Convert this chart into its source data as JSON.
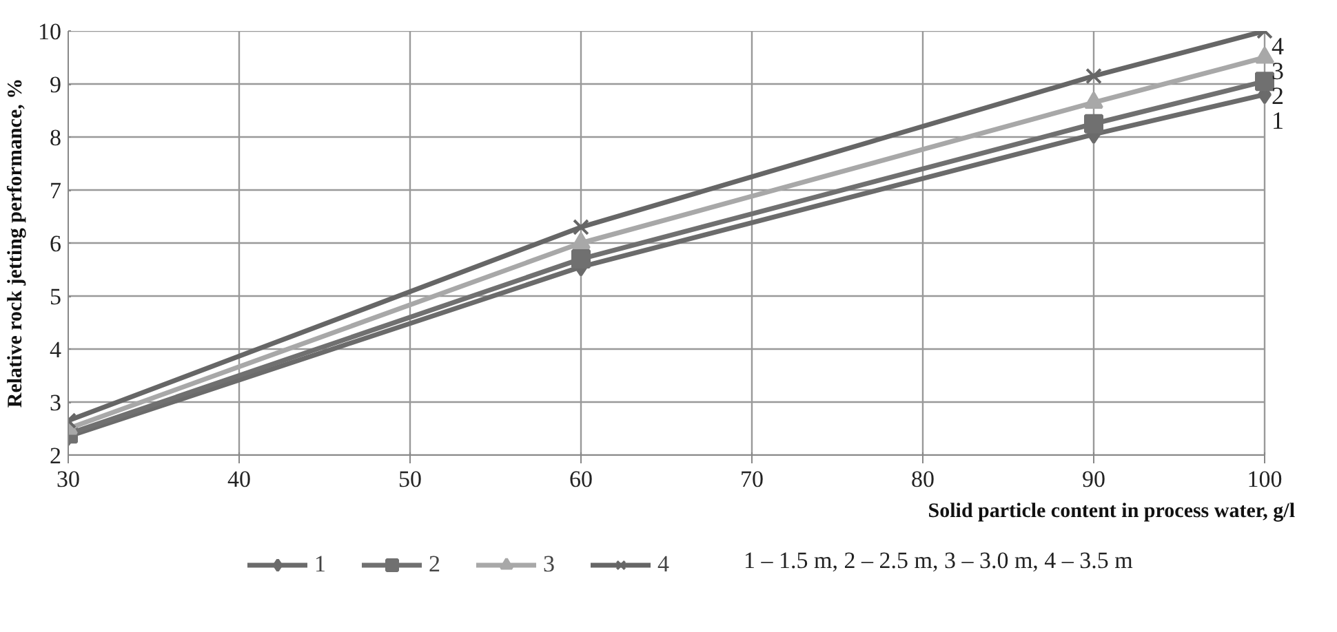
{
  "chart_data": {
    "type": "line",
    "xlabel": "Solid particle content in process water, g/l",
    "ylabel": "Relative rock jetting performance, %",
    "x": [
      30,
      60,
      90,
      100
    ],
    "series": [
      {
        "name": "1",
        "color": "#6b6b6b",
        "marker": "diamond",
        "values": [
          2.35,
          5.55,
          8.05,
          8.8
        ]
      },
      {
        "name": "2",
        "color": "#707070",
        "marker": "square",
        "values": [
          2.4,
          5.7,
          8.25,
          9.05
        ]
      },
      {
        "name": "3",
        "color": "#a8a8a8",
        "marker": "triangle",
        "values": [
          2.5,
          6.0,
          8.65,
          9.5
        ]
      },
      {
        "name": "4",
        "color": "#666666",
        "marker": "cross",
        "values": [
          2.65,
          6.3,
          9.15,
          10.0
        ]
      }
    ],
    "xlim": [
      30,
      100
    ],
    "xticks": [
      30,
      40,
      50,
      60,
      70,
      80,
      90,
      100
    ],
    "ylim": [
      2,
      10
    ],
    "yticks": [
      2,
      3,
      4,
      5,
      6,
      7,
      8,
      9,
      10
    ],
    "grid": true,
    "legend": "bottom",
    "line_style": "solid",
    "annotations": [
      "1 – 1.5 m, 2 – 2.5 m, 3 – 3.0 m, 4 – 3.5 m"
    ]
  }
}
